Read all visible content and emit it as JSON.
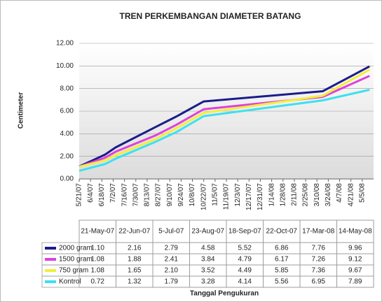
{
  "chart_data": {
    "type": "line",
    "title": "TREN PERKEMBANGAN DIAMETER BATANG",
    "y_label": "Centimeter",
    "x_label": "Tanggal Pengukuran",
    "x": [
      "2007-05-21",
      "2007-06-22",
      "2007-07-05",
      "2007-08-23",
      "2007-09-18",
      "2007-10-22",
      "2008-03-17",
      "2008-05-14"
    ],
    "x_labels": [
      "21-May-07",
      "22-Jun-07",
      "5-Jul-07",
      "23-Aug-07",
      "18-Sep-07",
      "22-Oct-07",
      "17-Mar-08",
      "14-May-08"
    ],
    "xlim": [
      "2007-05-21",
      "2008-05-19"
    ],
    "xticks": [
      {
        "value": "2007-05-21",
        "label": "5/21/07"
      },
      {
        "value": "2007-06-04",
        "label": "6/4/07"
      },
      {
        "value": "2007-06-18",
        "label": "6/18/07"
      },
      {
        "value": "2007-07-02",
        "label": "7/2/07"
      },
      {
        "value": "2007-07-16",
        "label": "7/16/07"
      },
      {
        "value": "2007-07-30",
        "label": "7/30/07"
      },
      {
        "value": "2007-08-13",
        "label": "8/13/07"
      },
      {
        "value": "2007-08-27",
        "label": "8/27/07"
      },
      {
        "value": "2007-09-10",
        "label": "9/10/07"
      },
      {
        "value": "2007-09-24",
        "label": "9/24/07"
      },
      {
        "value": "2007-10-08",
        "label": "10/8/07"
      },
      {
        "value": "2007-10-22",
        "label": "10/22/07"
      },
      {
        "value": "2007-11-05",
        "label": "11/5/07"
      },
      {
        "value": "2007-11-19",
        "label": "11/19/07"
      },
      {
        "value": "2007-12-03",
        "label": "12/3/07"
      },
      {
        "value": "2007-12-17",
        "label": "12/17/07"
      },
      {
        "value": "2007-12-31",
        "label": "12/31/07"
      },
      {
        "value": "2008-01-14",
        "label": "1/14/08"
      },
      {
        "value": "2008-01-28",
        "label": "1/28/08"
      },
      {
        "value": "2008-02-11",
        "label": "2/11/08"
      },
      {
        "value": "2008-02-25",
        "label": "2/25/08"
      },
      {
        "value": "2008-03-10",
        "label": "3/10/08"
      },
      {
        "value": "2008-03-24",
        "label": "3/24/08"
      },
      {
        "value": "2008-04-07",
        "label": "4/7/08"
      },
      {
        "value": "2008-04-21",
        "label": "4/21/08"
      },
      {
        "value": "2008-05-05",
        "label": "5/5/08"
      }
    ],
    "ylim": [
      0,
      12
    ],
    "yticks": [
      {
        "value": 0,
        "label": "0.00"
      },
      {
        "value": 2,
        "label": "2.00"
      },
      {
        "value": 4,
        "label": "4.00"
      },
      {
        "value": 6,
        "label": "6.00"
      },
      {
        "value": 8,
        "label": "8.00"
      },
      {
        "value": 10,
        "label": "10.00"
      },
      {
        "value": 12,
        "label": "12.00"
      }
    ],
    "grid": true,
    "series": [
      {
        "name": "2000 gram",
        "color": "#1c1c8c",
        "values": [
          1.1,
          2.16,
          2.79,
          4.58,
          5.52,
          6.86,
          7.76,
          9.96
        ],
        "value_labels": [
          "1.10",
          "2.16",
          "2.79",
          "4.58",
          "5.52",
          "6.86",
          "7.76",
          "9.96"
        ]
      },
      {
        "name": "1500 gram",
        "color": "#e040dc",
        "values": [
          1.08,
          1.88,
          2.41,
          3.84,
          4.79,
          6.17,
          7.26,
          9.12
        ],
        "value_labels": [
          "1.08",
          "1.88",
          "2.41",
          "3.84",
          "4.79",
          "6.17",
          "7.26",
          "9.12"
        ]
      },
      {
        "name": "750 gram",
        "color": "#f2ee3c",
        "values": [
          1.08,
          1.65,
          2.1,
          3.52,
          4.49,
          5.85,
          7.36,
          9.67
        ],
        "value_labels": [
          "1.08",
          "1.65",
          "2.10",
          "3.52",
          "4.49",
          "5.85",
          "7.36",
          "9.67"
        ]
      },
      {
        "name": "Kontrol",
        "color": "#3ee0ee",
        "values": [
          0.72,
          1.32,
          1.79,
          3.28,
          4.14,
          5.56,
          6.95,
          7.89
        ],
        "value_labels": [
          "0.72",
          "1.32",
          "1.79",
          "3.28",
          "4.14",
          "5.56",
          "6.95",
          "7.89"
        ]
      }
    ]
  }
}
